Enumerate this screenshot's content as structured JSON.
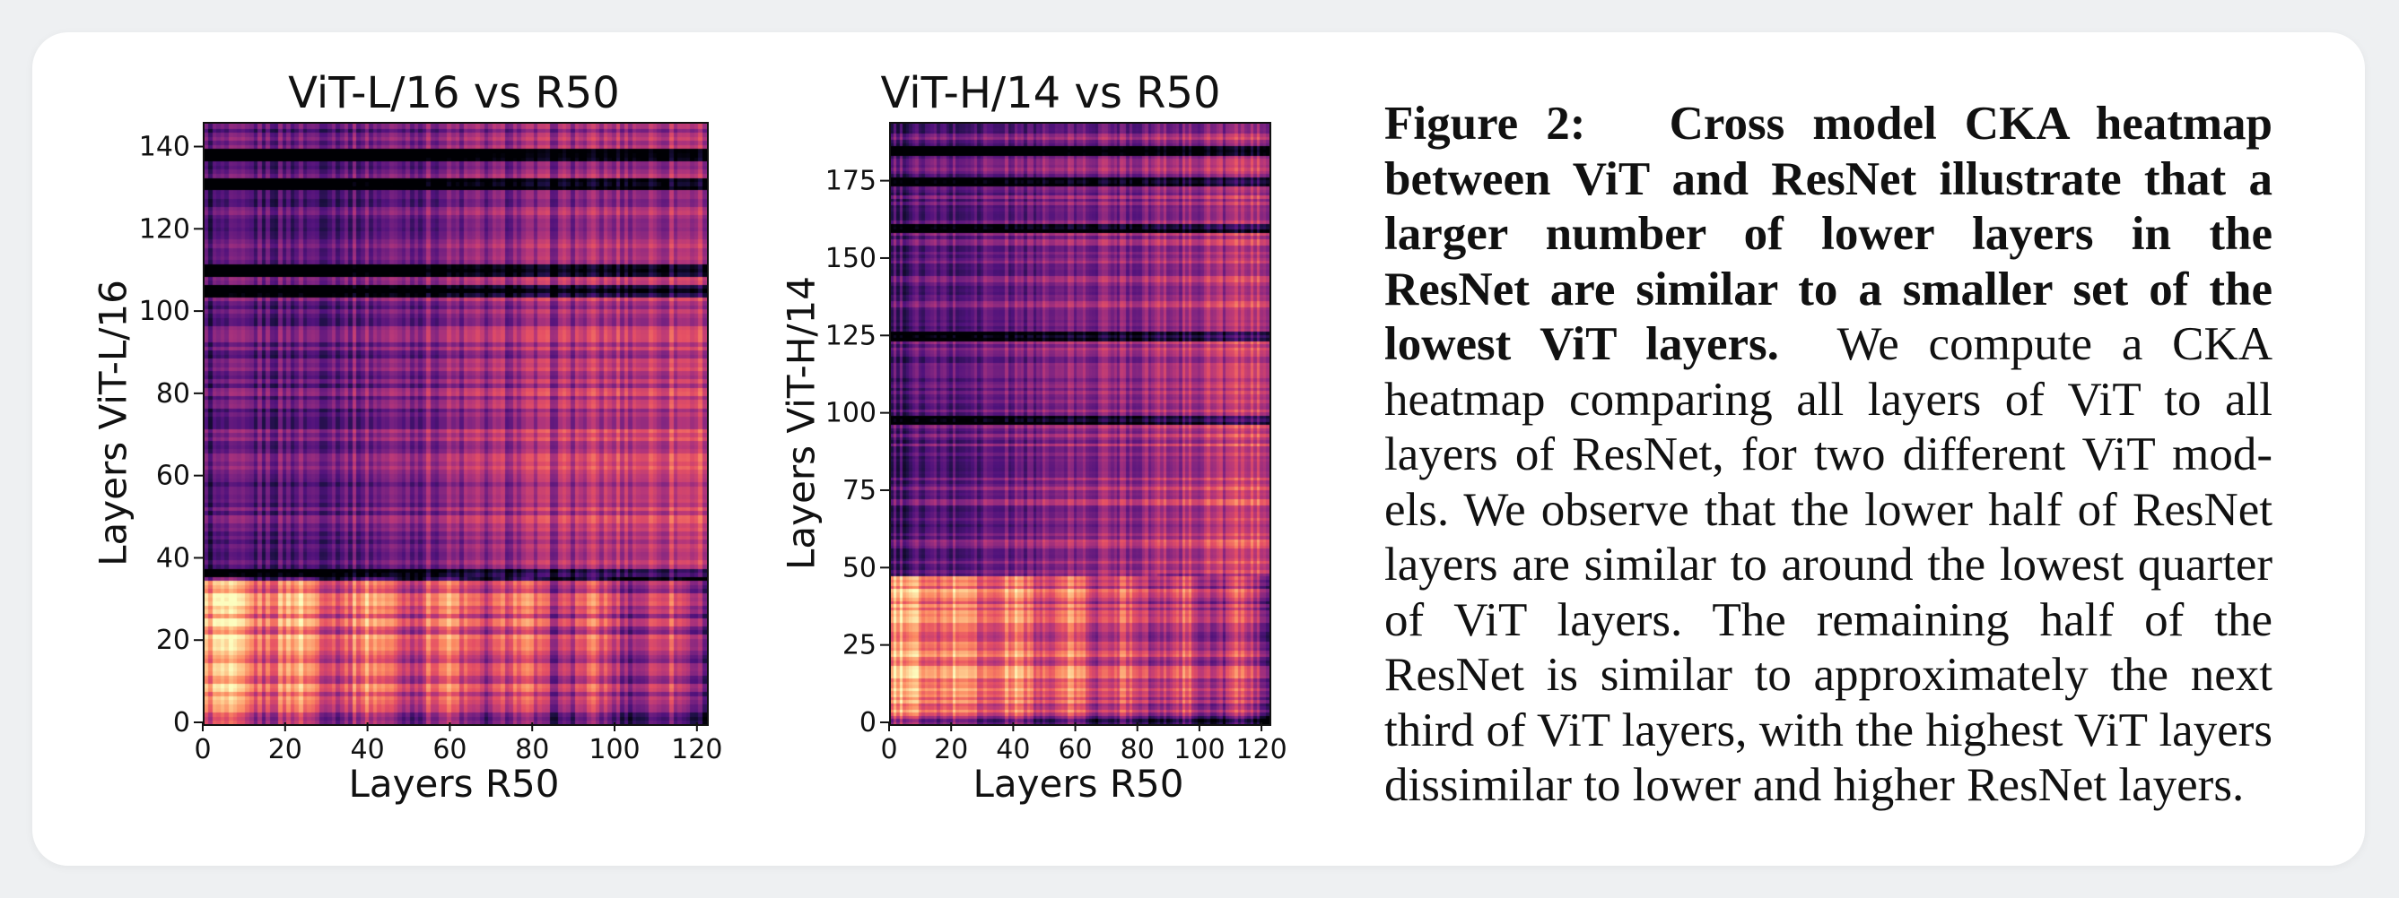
{
  "panels": [
    {
      "title": "ViT-L/16 vs R50",
      "xlabel": "Layers R50",
      "ylabel": "Layers ViT-L/16",
      "xticks": [
        "0",
        "20",
        "40",
        "60",
        "80",
        "100",
        "120"
      ],
      "yticks": [
        "0",
        "20",
        "40",
        "60",
        "80",
        "100",
        "120",
        "140"
      ]
    },
    {
      "title": "ViT-H/14 vs R50",
      "xlabel": "Layers R50",
      "ylabel": "Layers ViT-H/14",
      "xticks": [
        "0",
        "20",
        "40",
        "60",
        "80",
        "100",
        "120"
      ],
      "yticks": [
        "0",
        "25",
        "50",
        "75",
        "100",
        "125",
        "150",
        "175"
      ]
    }
  ],
  "chart_data": [
    {
      "type": "heatmap",
      "title": "ViT-L/16 vs R50",
      "xlabel": "Layers R50",
      "ylabel": "Layers ViT-L/16",
      "xlim": [
        0,
        122
      ],
      "ylim": [
        0,
        146
      ],
      "xticks": [
        0,
        20,
        40,
        60,
        80,
        100,
        120
      ],
      "yticks": [
        0,
        20,
        40,
        60,
        80,
        100,
        120,
        140
      ],
      "colormap": "magma",
      "dark_rows": [
        36,
        105,
        110,
        131,
        138
      ]
    },
    {
      "type": "heatmap",
      "title": "ViT-H/14 vs R50",
      "xlabel": "Layers R50",
      "ylabel": "Layers ViT-H/14",
      "xlim": [
        0,
        122
      ],
      "ylim": [
        0,
        194
      ],
      "xticks": [
        0,
        20,
        40,
        60,
        80,
        100,
        120
      ],
      "yticks": [
        0,
        25,
        50,
        75,
        100,
        125,
        150,
        175
      ],
      "colormap": "magma",
      "dark_rows": [
        98,
        125,
        160,
        175,
        185
      ]
    }
  ],
  "caption": {
    "label": "Figure 2:",
    "bold_text": "Cross model CKA heatmap between ViT and ResNet illustrate that a larger number of lower layers in the ResNet are similar to a smaller set of the lowest ViT layers.",
    "body": "We compute a CKA heatmap comparing all layers of ViT to all layers of ResNet, for two different ViT mod­els. We observe that the lower half of ResNet layers are similar to around the lowest quar­ter of ViT layers. The remaining half of the ResNet is similar to approximately the next third of ViT layers, with the highest ViT layers dissimilar to lower and higher ResNet layers."
  }
}
